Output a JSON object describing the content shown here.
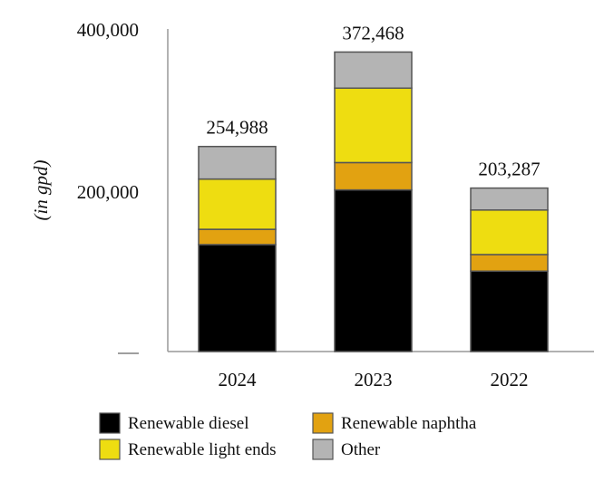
{
  "chart_data": {
    "type": "bar",
    "stacked": true,
    "categories": [
      "2024",
      "2023",
      "2022"
    ],
    "ylabel": "(in gpd)",
    "ylim": [
      0,
      400000
    ],
    "yticks": [
      {
        "value": 400000,
        "label": "400,000"
      },
      {
        "value": 200000,
        "label": "200,000"
      },
      {
        "value": 0,
        "label": ""
      }
    ],
    "grid": false,
    "legend_position": "bottom",
    "totals": [
      {
        "value": 254988,
        "label": "254,988"
      },
      {
        "value": 372468,
        "label": "372,468"
      },
      {
        "value": 203287,
        "label": "203,287"
      }
    ],
    "series": [
      {
        "name": "Renewable diesel",
        "color": "#000000",
        "values": [
          133000,
          201000,
          100000
        ]
      },
      {
        "name": "Renewable naphtha",
        "color": "#E2A211",
        "values": [
          19000,
          34000,
          20600
        ]
      },
      {
        "name": "Renewable light ends",
        "color": "#EEDD11",
        "values": [
          62500,
          92600,
          55400
        ]
      },
      {
        "name": "Other",
        "color": "#B4B4B4",
        "values": [
          40488,
          44868,
          27287
        ]
      }
    ]
  }
}
